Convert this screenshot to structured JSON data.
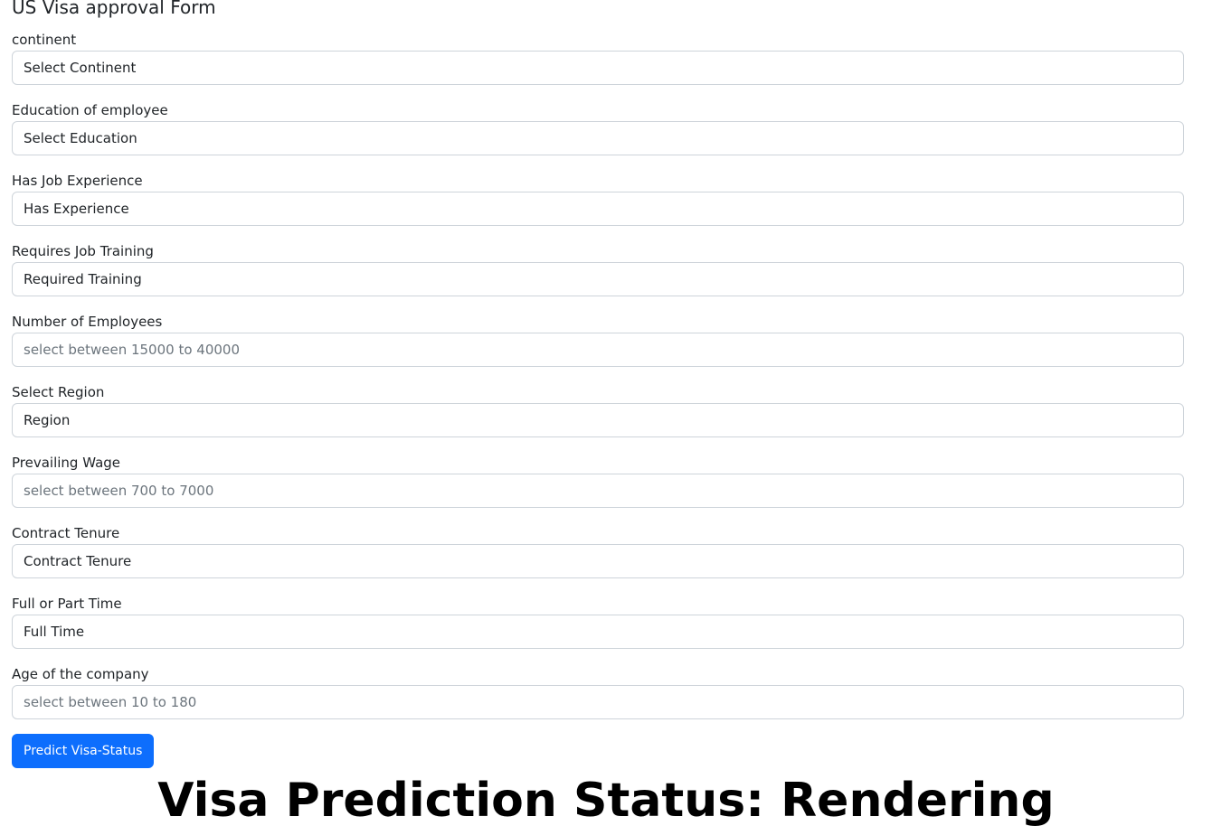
{
  "form": {
    "title": "US Visa approval Form",
    "fields": {
      "continent": {
        "label": "continent",
        "value": "Select Continent"
      },
      "education": {
        "label": "Education of employee",
        "value": "Select Education"
      },
      "job_experience": {
        "label": "Has Job Experience",
        "value": "Has Experience"
      },
      "job_training": {
        "label": "Requires Job Training",
        "value": "Required Training"
      },
      "num_employees": {
        "label": "Number of Employees",
        "placeholder": "select between 15000 to 40000"
      },
      "region": {
        "label": "Select Region",
        "value": "Region"
      },
      "prevailing_wage": {
        "label": "Prevailing Wage",
        "placeholder": "select between 700 to 7000"
      },
      "contract_tenure": {
        "label": "Contract Tenure",
        "value": "Contract Tenure"
      },
      "full_or_part_time": {
        "label": "Full or Part Time",
        "value": "Full Time"
      },
      "company_age": {
        "label": "Age of the company",
        "placeholder": "select between 10 to 180"
      }
    },
    "submit_label": "Predict Visa-Status"
  },
  "result": {
    "status_text": "Visa Prediction Status: Rendering"
  },
  "colors": {
    "primary": "#0d6efd",
    "border": "#ced4da",
    "placeholder": "#6c757d",
    "text": "#212529"
  }
}
